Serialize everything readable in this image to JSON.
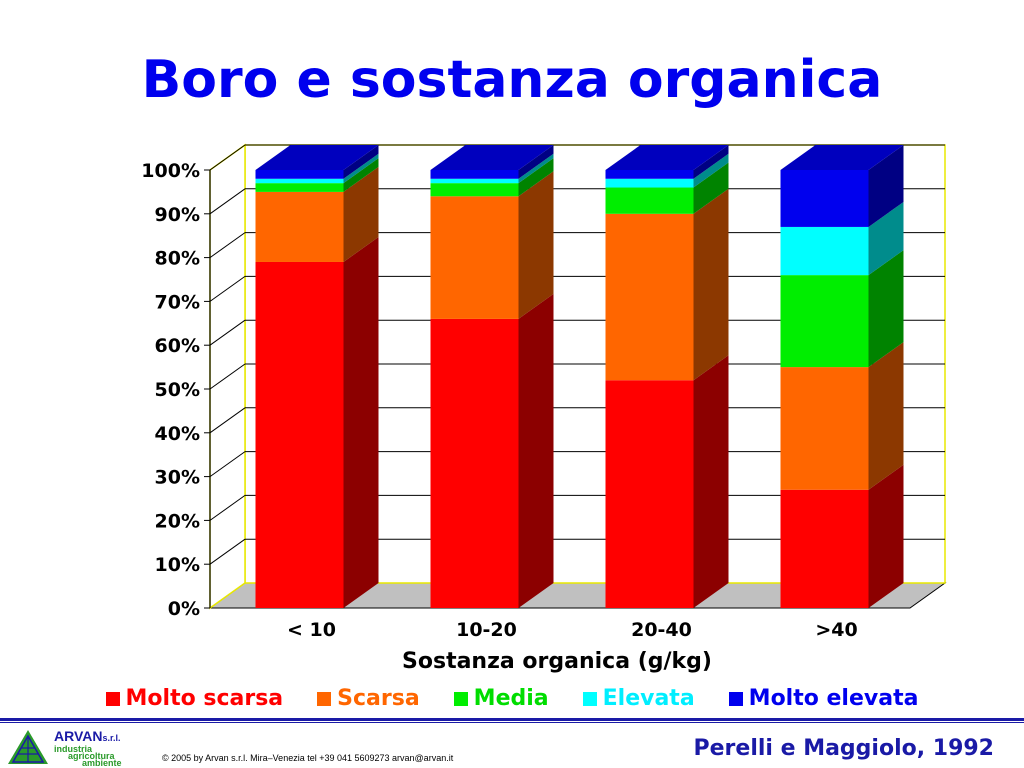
{
  "slide": {
    "title": "Boro e sostanza organica",
    "citation": "Perelli e Maggiolo, 1992",
    "copyright": "© 2005 by Arvan s.r.l. Mira–Venezia tel +39 041 5609273 arvan@arvan.it",
    "logo": {
      "brand": "ARVAN",
      "suffix": "s.r.l.",
      "lines": [
        "industria",
        "agricoltura",
        "ambiente"
      ]
    }
  },
  "chart_data": {
    "type": "bar",
    "stacked": true,
    "three_d": true,
    "categories": [
      "< 10",
      "10-20",
      "20-40",
      ">40"
    ],
    "xlabel": "Sostanza organica (g/kg)",
    "ylabel": "",
    "ylim": [
      0,
      100
    ],
    "yticks": [
      "0%",
      "10%",
      "20%",
      "30%",
      "40%",
      "50%",
      "60%",
      "70%",
      "80%",
      "90%",
      "100%"
    ],
    "grid": true,
    "legend_position": "bottom",
    "series": [
      {
        "name": "Molto scarsa",
        "color": "#ff0000",
        "values": [
          79,
          66,
          52,
          27
        ]
      },
      {
        "name": "Scarsa",
        "color": "#ff6600",
        "values": [
          16,
          28,
          38,
          28
        ]
      },
      {
        "name": "Media",
        "color": "#00ee00",
        "values": [
          2,
          3,
          6,
          21
        ]
      },
      {
        "name": "Elevata",
        "color": "#00ffff",
        "values": [
          1,
          1,
          2,
          11
        ]
      },
      {
        "name": "Molto elevata",
        "color": "#0000ee",
        "values": [
          2,
          2,
          2,
          13
        ]
      }
    ]
  }
}
